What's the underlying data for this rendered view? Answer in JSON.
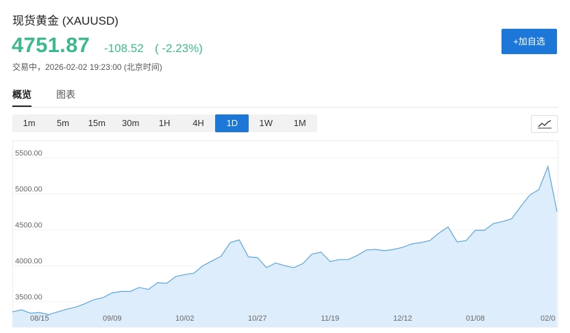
{
  "header": {
    "title": "现货黄金 (XAUUSD)",
    "price": "4751.87",
    "change": "-108.52",
    "change_percent": "( -2.23%)",
    "status": "交易中，2026-02-02 19:23:00 (北京时间)",
    "add_button": "+加自选"
  },
  "tabs": [
    "概览",
    "图表"
  ],
  "intervals": [
    "1m",
    "5m",
    "15m",
    "30m",
    "1H",
    "4H",
    "1D",
    "1W",
    "1M"
  ],
  "active_interval": "1D",
  "chart_data": {
    "type": "area",
    "color": "#5aa5e0",
    "fill": "#ddedfb",
    "categories": [
      null,
      null,
      null,
      "08/15",
      null,
      null,
      null,
      null,
      null,
      null,
      null,
      "09/09",
      null,
      null,
      null,
      null,
      null,
      null,
      null,
      "10/02",
      null,
      null,
      null,
      null,
      null,
      null,
      null,
      "10/27",
      null,
      null,
      null,
      null,
      null,
      null,
      null,
      "11/19",
      null,
      null,
      null,
      null,
      null,
      null,
      null,
      "12/12",
      null,
      null,
      null,
      null,
      null,
      null,
      null,
      "01/08",
      null,
      null,
      null,
      null,
      null,
      null,
      null,
      "02/0",
      null
    ],
    "values": [
      3358,
      3387,
      3340,
      3349,
      3321,
      3358,
      3396,
      3425,
      3472,
      3528,
      3557,
      3623,
      3642,
      3642,
      3698,
      3670,
      3764,
      3755,
      3849,
      3877,
      3896,
      4000,
      4066,
      4132,
      4321,
      4358,
      4123,
      4113,
      3972,
      4038,
      4000,
      3972,
      4028,
      4160,
      4189,
      4057,
      4085,
      4085,
      4142,
      4217,
      4226,
      4208,
      4226,
      4255,
      4302,
      4321,
      4349,
      4453,
      4538,
      4330,
      4349,
      4491,
      4491,
      4585,
      4613,
      4651,
      4821,
      4981,
      5057,
      5377,
      4752
    ],
    "ylim": [
      3160,
      5720
    ],
    "yticks": [
      {
        "value": 3500,
        "label": "3500.00"
      },
      {
        "value": 4000,
        "label": "4000.00"
      },
      {
        "value": 4500,
        "label": "4500.00"
      },
      {
        "value": 5000,
        "label": "5000.00"
      },
      {
        "value": 5500,
        "label": "5500.00"
      }
    ],
    "grid": true
  }
}
